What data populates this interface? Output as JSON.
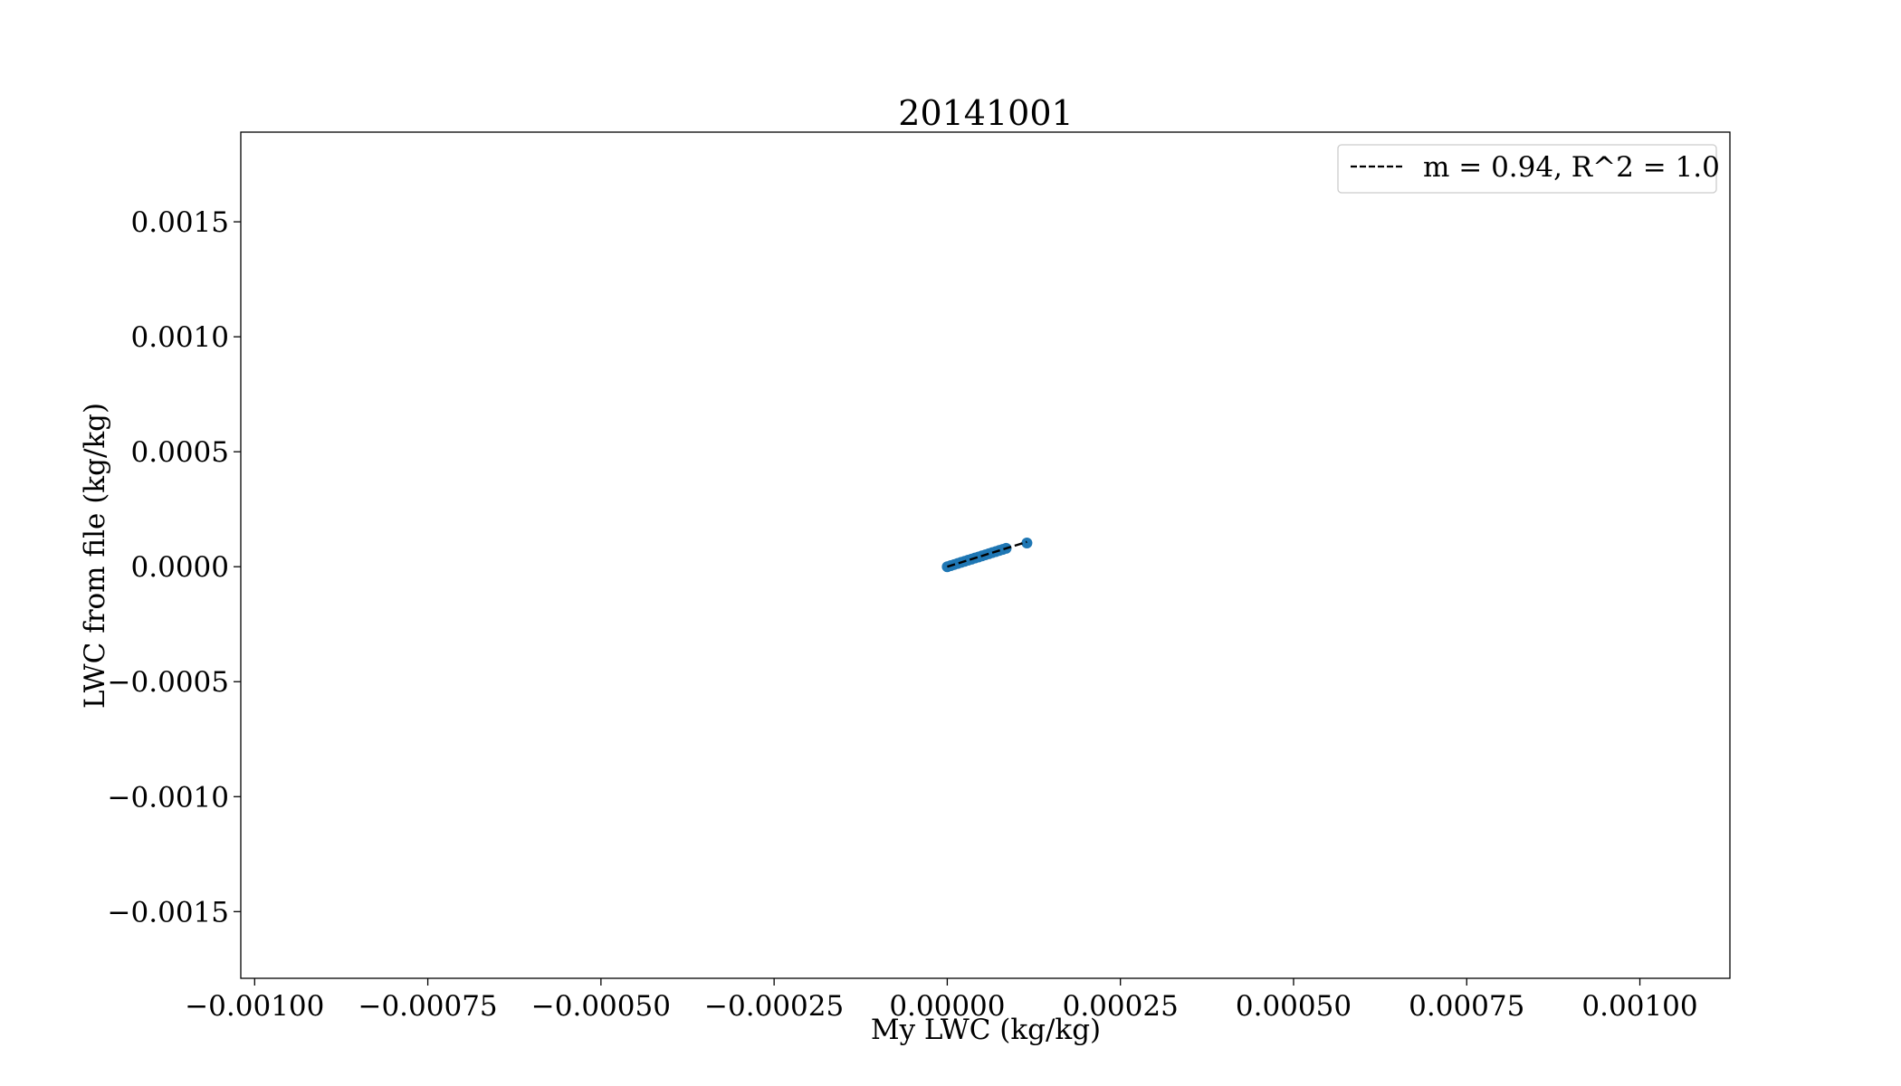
{
  "chart_data": {
    "type": "scatter",
    "title": "20141001",
    "xlabel": "My LWC (kg/kg)",
    "ylabel": "LWC from file (kg/kg)",
    "xlim": [
      -0.00102,
      0.00113
    ],
    "ylim": [
      -0.00179,
      0.00189
    ],
    "xticks": [
      -0.001,
      -0.00075,
      -0.0005,
      -0.00025,
      0.0,
      0.00025,
      0.0005,
      0.00075,
      0.001
    ],
    "xtick_labels": [
      "−0.00100",
      "−0.00075",
      "−0.00050",
      "−0.00025",
      "0.00000",
      "0.00025",
      "0.00050",
      "0.00075",
      "0.00100"
    ],
    "yticks": [
      -0.0015,
      -0.001,
      -0.0005,
      0.0,
      0.0005,
      0.001,
      0.0015
    ],
    "ytick_labels": [
      "−0.0015",
      "−0.0010",
      "−0.0005",
      "0.0000",
      "0.0005",
      "0.0010",
      "0.0015"
    ],
    "grid": false,
    "legend_position": "top-right",
    "series": [
      {
        "kind": "scatter",
        "color": "#1f77b4",
        "x": [
          0.0,
          5e-06,
          1e-05,
          1.5e-05,
          2e-05,
          2.5e-05,
          3e-05,
          3.5e-05,
          4e-05,
          4.5e-05,
          5e-05,
          5.5e-05,
          6e-05,
          6.5e-05,
          7e-05,
          7.5e-05,
          8e-05,
          8.5e-05,
          0.000115
        ],
        "y": [
          0.0,
          4.7e-06,
          9.4e-06,
          1.41e-05,
          1.88e-05,
          2.35e-05,
          2.82e-05,
          3.29e-05,
          3.76e-05,
          4.23e-05,
          4.7e-05,
          5.17e-05,
          5.64e-05,
          6.11e-05,
          6.58e-05,
          7.05e-05,
          7.52e-05,
          7.99e-05,
          0.000103
        ]
      },
      {
        "kind": "line",
        "name": "m = 0.94, R^2 = 1.0",
        "color": "#000000",
        "style": "dashed",
        "x": [
          0.0,
          0.000115
        ],
        "y": [
          0.0,
          0.000108
        ]
      }
    ]
  }
}
